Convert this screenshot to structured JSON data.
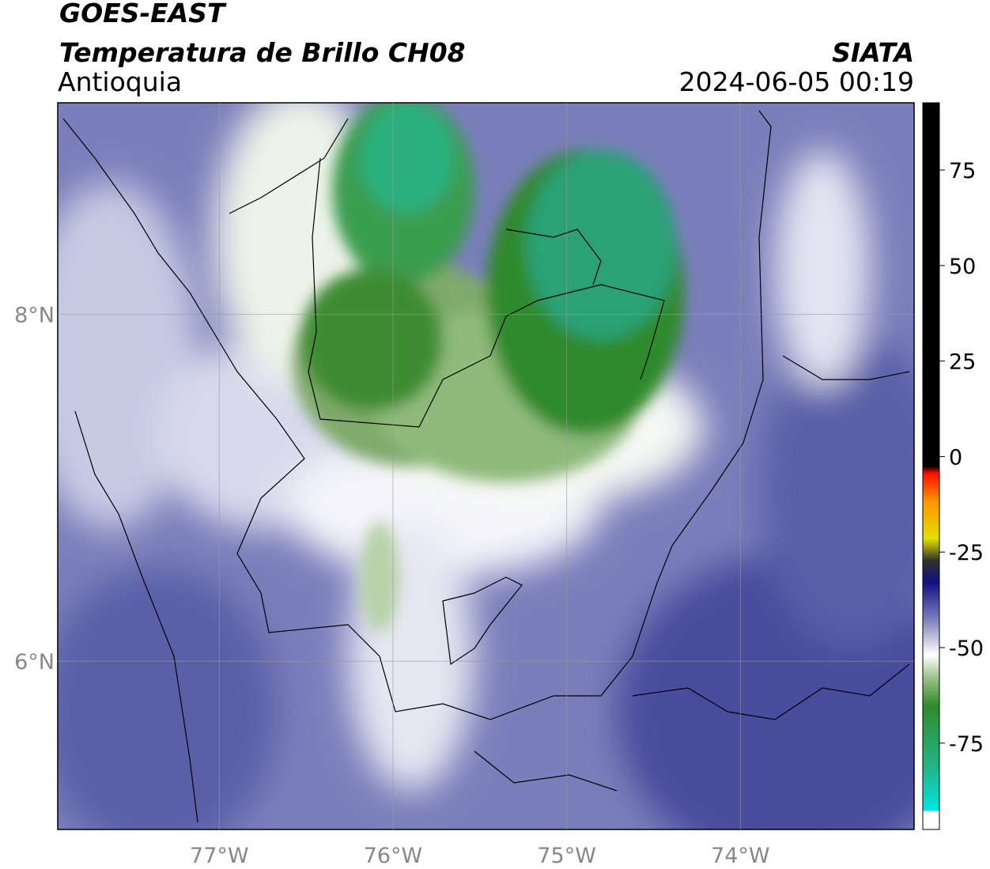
{
  "header": {
    "title": "GOES-EAST",
    "subtitle": "Temperatura de Brillo CH08",
    "region": "Antioquia",
    "source": "SIATA",
    "datetime": "2024-06-05 00:19"
  },
  "map": {
    "lonlim": [
      -77.93,
      -73.0
    ],
    "latlim": [
      5.03,
      9.22
    ],
    "lonticks": [
      {
        "value": -77,
        "label": "77°W"
      },
      {
        "value": -76,
        "label": "76°W"
      },
      {
        "value": -75,
        "label": "75°W"
      },
      {
        "value": -74,
        "label": "74°W"
      }
    ],
    "latticks": [
      {
        "value": 8,
        "label": "8°N"
      },
      {
        "value": 6,
        "label": "6°N"
      }
    ]
  },
  "colorbar": {
    "lim": [
      -97.6,
      92.6
    ],
    "ticks": [
      75,
      50,
      25,
      0,
      -25,
      -50,
      -75
    ]
  }
}
